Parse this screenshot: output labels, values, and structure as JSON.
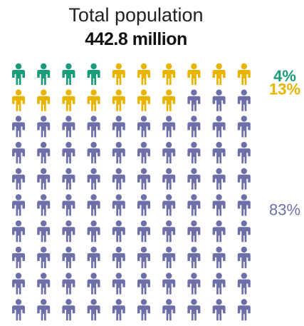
{
  "chart_data": {
    "type": "pictogram",
    "title": "Total population",
    "subtitle": "442.8 million",
    "total_icons": 100,
    "columns": 10,
    "categories": [
      {
        "label": "4%",
        "value": 4,
        "color": "#1a9b7a"
      },
      {
        "label": "13%",
        "value": 13,
        "color": "#e8b400"
      },
      {
        "label": "83%",
        "value": 83,
        "color": "#6d6fa8"
      }
    ]
  }
}
